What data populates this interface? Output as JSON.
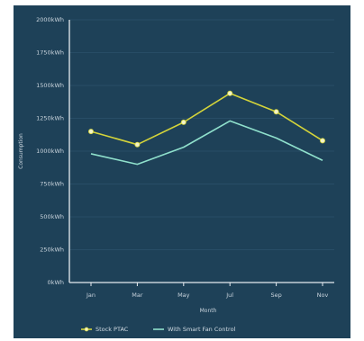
{
  "chart_data": {
    "type": "line",
    "categories": [
      "Jan",
      "Mar",
      "May",
      "Jul",
      "Sep",
      "Nov"
    ],
    "series": [
      {
        "name": "Stock PTAC",
        "color": "#d4d43a",
        "marker": "circle",
        "values": [
          1150,
          1050,
          1220,
          1440,
          1300,
          1080
        ]
      },
      {
        "name": "With Smart Fan Control",
        "color": "#8fe0cc",
        "marker": "none",
        "values": [
          980,
          900,
          1030,
          1230,
          1100,
          930
        ]
      }
    ],
    "ylim": [
      0,
      2000
    ],
    "yticks": [
      "0kWh",
      "250kWh",
      "500kWh",
      "750kWh",
      "1000kWh",
      "1250kWh",
      "1500kWh",
      "1750kWh",
      "2000kWh"
    ],
    "xlabel": "Month",
    "ylabel": "Consumption",
    "grid": true,
    "legend": "bottom",
    "colors": {
      "background": "#1e4158",
      "axis": "#e6ecf0",
      "grid": "#2c526b"
    }
  }
}
